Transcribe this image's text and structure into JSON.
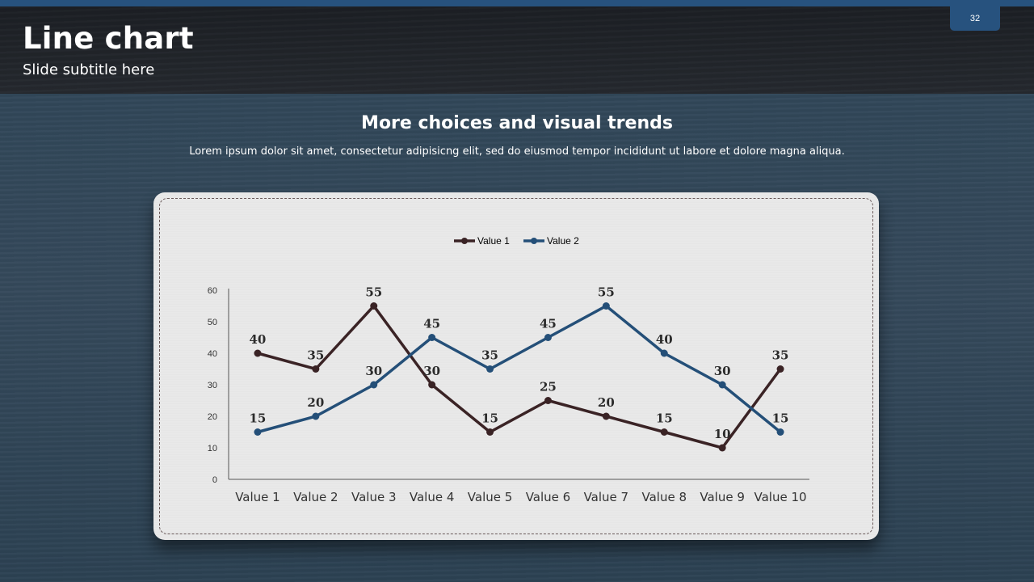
{
  "slide": {
    "title": "Line chart",
    "subtitle": "Slide subtitle here",
    "page_number": "32",
    "heading": "More choices and visual trends",
    "body": "Lorem ipsum dolor sit amet, consectetur adipisicng elit, sed do eiusmod tempor incididunt ut labore et dolore magna aliqua."
  },
  "colors": {
    "series_1": "#3a2325",
    "series_2": "#244f78",
    "accent": "#27527e"
  },
  "chart_data": {
    "type": "line",
    "title": "",
    "xlabel": "",
    "ylabel": "",
    "categories": [
      "Value 1",
      "Value 2",
      "Value 3",
      "Value 4",
      "Value 5",
      "Value 6",
      "Value 7",
      "Value 8",
      "Value 9",
      "Value 10"
    ],
    "series": [
      {
        "name": "Value 1",
        "values": [
          40,
          35,
          55,
          30,
          15,
          25,
          20,
          15,
          10,
          35
        ]
      },
      {
        "name": "Value 2",
        "values": [
          15,
          20,
          30,
          45,
          35,
          45,
          55,
          40,
          30,
          15
        ]
      }
    ],
    "ylim": [
      0,
      60
    ],
    "yticks": [
      "0",
      "10",
      "20",
      "30",
      "40",
      "50",
      "60"
    ],
    "data_labels": true,
    "legend_position": "top-center",
    "grid": false
  }
}
